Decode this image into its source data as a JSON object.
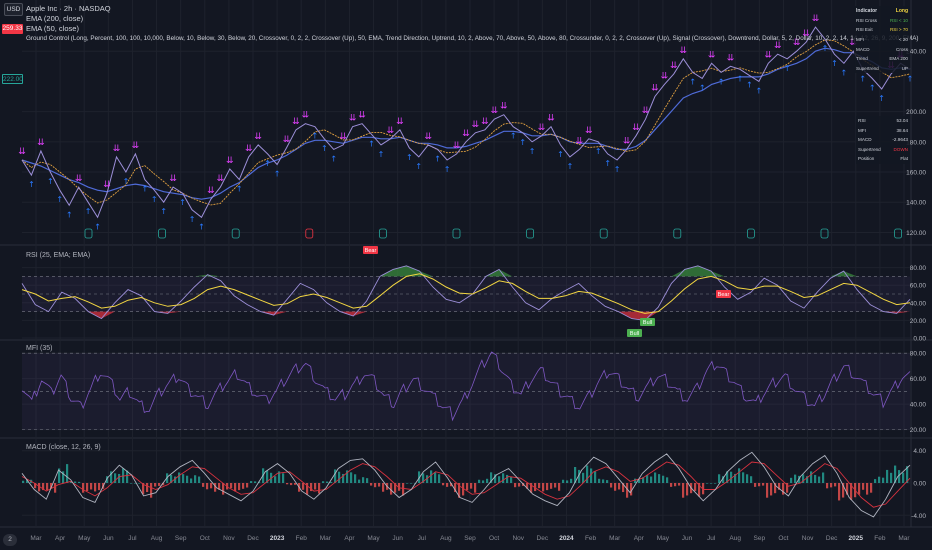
{
  "legend": {
    "title": "Apple Inc · 2h · NASDAQ",
    "ema200": "EMA (200, close)",
    "ema50": "EMA (50, close)",
    "ground_control": "Ground Control (Long, Percent, 100, 100, 10,000, Below, 10, Below, 30, Below, 20, Crossover, 0, 2, 2, Crossover (Up), 50, EMA, Trend Direction, Uptrend, 10, 2, Above, 70, Above, 50, Above, 80, Crossunder, 0, 2, 2, Crossover (Up), Signal (Crossover), Downtrend, Dollar, 5, 2, Dollar, 10, 2, 2, 14, 14, 12, 26, 9, 200, EMA)"
  },
  "toolbar": {
    "currency_label": "USD"
  },
  "price_tags": {
    "red_tag": "259.33",
    "green_tag": "222.00"
  },
  "pane_labels": {
    "rsi": "RSI (25, EMA; EMA)",
    "mfi": "MFI (35)",
    "macd": "MACD (close, 12, 26, 9)"
  },
  "bottom_badge": "2",
  "signal_labels": {
    "bear": "Bear",
    "bull": "Bull"
  },
  "colors": {
    "background": "#131722",
    "price_line": "#9c8fd8",
    "ema_fast": "#e0a040",
    "ema_slow": "#4f6bd8",
    "down_arrow": "#e040fb",
    "up_arrow": "#2979ff",
    "rsi_line": "#9c8fd8",
    "rsi_ema": "#f2d642",
    "rsi_overbought_fill": "#3a8a3e",
    "rsi_oversold_fill": "#d8323f",
    "mfi_line": "#7e57c2",
    "macd_line": "#b0b4c0",
    "macd_signal": "#d8323f",
    "hist_up": "#26a69a",
    "hist_down": "#ef5350",
    "bear_label": "#f23645",
    "bull_label": "#4caf50",
    "grid": "#1e222d"
  },
  "info_table": {
    "header": [
      "Indicator",
      "Long"
    ],
    "rows": [
      [
        "RSI Cross",
        "RSI < 10"
      ],
      [
        "RSI Exit",
        "RSI > 70"
      ],
      [
        "MFI",
        "< 20"
      ],
      [
        "MACD",
        "Cross"
      ],
      [
        "Trend",
        "EMA 200"
      ],
      [
        "Supertrend",
        "UP"
      ]
    ]
  },
  "info_table2": {
    "rows": [
      [
        "RSI",
        "53.04"
      ],
      [
        "MFI",
        "38.64"
      ],
      [
        "MACD",
        "-2.9643"
      ],
      [
        "Supertrend",
        "DOWN"
      ],
      [
        "Position",
        "Flat"
      ]
    ]
  },
  "chart_data": [
    {
      "type": "line",
      "name": "price",
      "x": [
        "Mar",
        "Apr",
        "May",
        "Jun",
        "Jul",
        "Aug",
        "Sep",
        "Oct",
        "Nov",
        "Dec",
        "2023",
        "Feb",
        "Mar",
        "Apr",
        "May",
        "Jun",
        "Jul",
        "Aug",
        "Sep",
        "Oct",
        "Nov",
        "Dec",
        "2024",
        "Feb",
        "Mar",
        "Apr",
        "May",
        "Jun",
        "Jul",
        "Aug",
        "Sep",
        "Oct",
        "Nov",
        "Dec",
        "2025",
        "Feb",
        "Mar"
      ],
      "price_axis_ticks": [
        120.0,
        140.0,
        160.0,
        180.0,
        200.0,
        240.0
      ],
      "ylim": [
        115,
        262
      ],
      "price_series": [
        168,
        158,
        174,
        160,
        148,
        138,
        150,
        140,
        130,
        146,
        170,
        160,
        172,
        155,
        148,
        140,
        150,
        146,
        135,
        130,
        142,
        150,
        162,
        155,
        170,
        178,
        172,
        165,
        176,
        188,
        192,
        190,
        182,
        175,
        178,
        190,
        192,
        185,
        178,
        182,
        188,
        176,
        170,
        178,
        175,
        168,
        172,
        180,
        186,
        188,
        195,
        198,
        190,
        186,
        180,
        184,
        190,
        178,
        170,
        175,
        182,
        180,
        172,
        168,
        175,
        184,
        195,
        210,
        218,
        225,
        235,
        226,
        222,
        232,
        226,
        230,
        228,
        224,
        220,
        232,
        238,
        235,
        240,
        246,
        256,
        248,
        238,
        232,
        240,
        228,
        222,
        215,
        225,
        232,
        228
      ],
      "ema200": [
        168,
        166,
        164,
        161,
        158,
        155,
        153,
        150,
        148,
        147,
        149,
        151,
        152,
        151,
        149,
        147,
        146,
        145,
        143,
        142,
        143,
        146,
        150,
        153,
        158,
        163,
        166,
        168,
        171,
        175,
        179,
        181,
        181,
        180,
        179,
        181,
        183,
        183,
        182,
        182,
        183,
        181,
        179,
        179,
        178,
        176,
        176,
        177,
        179,
        181,
        184,
        187,
        187,
        186,
        184,
        184,
        185,
        183,
        180,
        179,
        179,
        179,
        177,
        175,
        175,
        177,
        181,
        188,
        195,
        202,
        209,
        212,
        214,
        218,
        220,
        222,
        223,
        223,
        223,
        225,
        228,
        230,
        232,
        235,
        240,
        242,
        241,
        239,
        239,
        236,
        233,
        229,
        228,
        229,
        228
      ]
    },
    {
      "type": "line",
      "name": "RSI",
      "y_axis_ticks": [
        0.0,
        20.0,
        40.0,
        60.0,
        80.0
      ],
      "ylim": [
        0,
        100
      ],
      "levels": [
        30,
        50,
        70
      ],
      "rsi": [
        62,
        38,
        30,
        52,
        45,
        30,
        22,
        40,
        55,
        48,
        30,
        28,
        42,
        58,
        72,
        65,
        48,
        38,
        30,
        26,
        44,
        62,
        55,
        40,
        30,
        25,
        42,
        70,
        78,
        82,
        76,
        58,
        44,
        40,
        50,
        70,
        78,
        58,
        40,
        32,
        45,
        54,
        62,
        48,
        36,
        30,
        22,
        20,
        35,
        62,
        78,
        82,
        76,
        58,
        44,
        52,
        68,
        60,
        42,
        34,
        52,
        68,
        76,
        55,
        38,
        30,
        28,
        44
      ],
      "rsi_ema": [
        55,
        50,
        42,
        45,
        47,
        41,
        34,
        36,
        43,
        46,
        40,
        36,
        38,
        45,
        55,
        59,
        55,
        49,
        43,
        37,
        39,
        47,
        50,
        46,
        40,
        34,
        36,
        48,
        60,
        70,
        73,
        67,
        58,
        51,
        50,
        57,
        65,
        62,
        53,
        45,
        45,
        48,
        53,
        51,
        45,
        39,
        32,
        28,
        30,
        42,
        56,
        67,
        70,
        65,
        57,
        55,
        59,
        59,
        53,
        46,
        48,
        55,
        62,
        60,
        52,
        44,
        38,
        40
      ]
    },
    {
      "type": "line",
      "name": "MFI",
      "y_axis_ticks": [
        20.0,
        40.0,
        60.0,
        80.0
      ],
      "ylim": [
        15,
        88
      ],
      "levels": [
        20,
        50,
        80
      ],
      "mfi": [
        55,
        42,
        60,
        48,
        62,
        45,
        38,
        52,
        66,
        58,
        44,
        50,
        40,
        36,
        48,
        56,
        62,
        52,
        46,
        40,
        50,
        58,
        64,
        55,
        48,
        42,
        50,
        60,
        68,
        72,
        60,
        50,
        44,
        48,
        56,
        64,
        58,
        46,
        40,
        52,
        60,
        54,
        46,
        38,
        32,
        42,
        56,
        70,
        80,
        68,
        55,
        48,
        60,
        66,
        58,
        50,
        44,
        38,
        46,
        58,
        66,
        60,
        52,
        46,
        54,
        62,
        58,
        50,
        44,
        52,
        66,
        72,
        64,
        56,
        46,
        40,
        50,
        58,
        62,
        52,
        44,
        38,
        48,
        60,
        70,
        64,
        56,
        48,
        42,
        52,
        62
      ]
    },
    {
      "type": "line",
      "name": "MACD",
      "y_axis_ticks": [
        -4.0,
        0.0,
        4.0
      ],
      "ylim": [
        -5.2,
        5.2
      ],
      "macd": [
        1.2,
        -0.8,
        -2.0,
        1.6,
        0.4,
        -1.8,
        -2.4,
        0.6,
        2.2,
        1.0,
        -1.6,
        -1.2,
        0.8,
        2.0,
        2.8,
        1.2,
        -0.6,
        -1.4,
        -2.2,
        -1.0,
        1.4,
        2.4,
        1.2,
        -1.0,
        -2.0,
        -0.6,
        1.8,
        2.8,
        3.0,
        1.6,
        -0.4,
        -1.8,
        -0.8,
        1.4,
        2.6,
        0.6,
        -1.8,
        -2.4,
        -0.8,
        1.0,
        1.8,
        0.2,
        -1.4,
        -2.2,
        -2.8,
        -1.2,
        1.6,
        3.2,
        2.4,
        0.6,
        -1.2,
        1.2,
        2.6,
        3.6,
        1.8,
        -0.6,
        -2.2,
        -0.8,
        1.4,
        2.8,
        3.8,
        2.0,
        -0.4,
        -1.6,
        0.8,
        2.4,
        3.4,
        1.2,
        -1.8,
        -3.4,
        -4.2,
        -2.0,
        0.8,
        2.2
      ],
      "signal": [
        0.8,
        0.0,
        -1.0,
        -0.2,
        0.2,
        -0.8,
        -1.6,
        -0.6,
        0.8,
        1.0,
        -0.2,
        -0.8,
        -0.2,
        1.0,
        2.0,
        1.8,
        0.6,
        -0.6,
        -1.4,
        -1.2,
        0.0,
        1.2,
        1.4,
        0.2,
        -1.0,
        -0.8,
        0.4,
        1.6,
        2.4,
        2.0,
        0.8,
        -0.6,
        -0.8,
        0.2,
        1.4,
        1.0,
        -0.4,
        -1.4,
        -1.2,
        -0.2,
        0.8,
        0.6,
        -0.4,
        -1.4,
        -2.0,
        -1.6,
        -0.2,
        1.4,
        2.0,
        1.4,
        0.2,
        0.6,
        1.6,
        2.6,
        2.2,
        0.8,
        -0.8,
        -0.8,
        0.2,
        1.4,
        2.6,
        2.4,
        1.0,
        -0.4,
        0.0,
        1.2,
        2.4,
        1.8,
        0.0,
        -1.8,
        -3.0,
        -2.6,
        -1.0,
        0.6
      ]
    }
  ]
}
